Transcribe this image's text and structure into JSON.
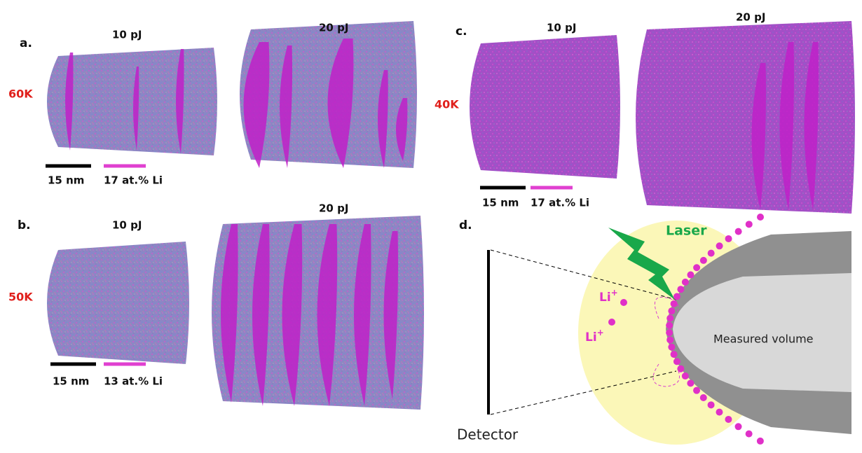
{
  "panels": [
    {
      "label": "a.",
      "temperature": "60K",
      "columns": [
        "10 pJ",
        "20 pJ"
      ],
      "scale_bar": "15 nm",
      "concentration_bar": "17 at.% Li"
    },
    {
      "label": "b.",
      "temperature": "50K",
      "columns": [
        "10 pJ",
        "20 pJ"
      ],
      "scale_bar": "15 nm",
      "concentration_bar": "13 at.% Li"
    },
    {
      "label": "c.",
      "temperature": "40K",
      "columns": [
        "10 pJ",
        "20 pJ"
      ],
      "scale_bar": "15 nm",
      "concentration_bar": "17 at.% Li"
    }
  ],
  "diagram": {
    "label": "d.",
    "laser": "Laser",
    "ion": "Li",
    "ion_charge": "+",
    "detector": "Detector",
    "volume": "Measured volume"
  }
}
